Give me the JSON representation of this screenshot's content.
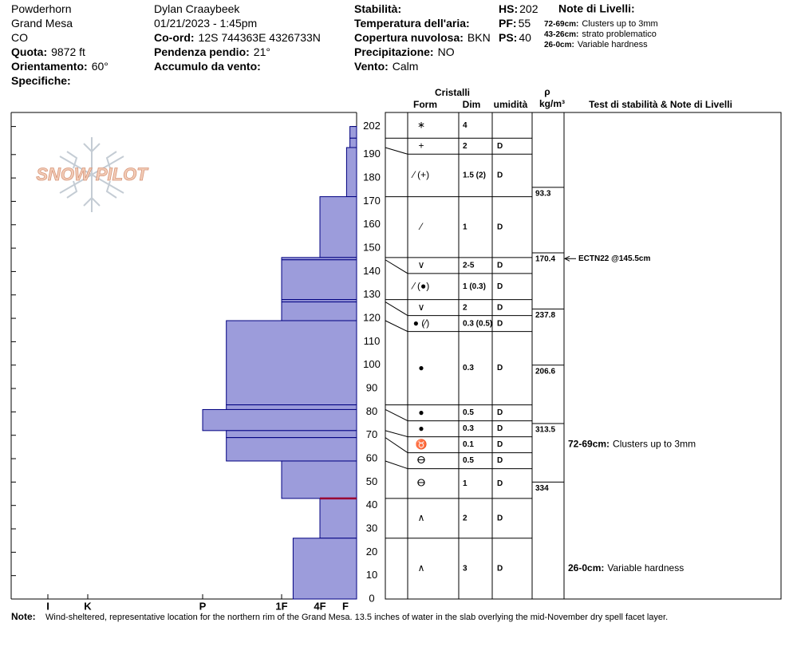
{
  "header": {
    "columns": [
      [
        {
          "value": "Powderhorn"
        },
        {
          "value": "Grand Mesa"
        },
        {
          "value": "CO"
        },
        {
          "label": "Quota:",
          "value": "9872 ft"
        },
        {
          "label": "Orientamento:",
          "value": "60°"
        },
        {
          "label": "Specifiche:"
        }
      ],
      [
        {
          "value": "Dylan Craaybeek"
        },
        {
          "value": "01/21/2023 - 1:45pm"
        },
        {
          "label": "Co-ord:",
          "value": "12S 744363E 4326733N"
        },
        {
          "label": "Pendenza pendio:",
          "value": "21°"
        },
        {
          "label": "Accumulo da vento:"
        }
      ],
      [
        {
          "label": "Stabilità:"
        },
        {
          "label": "Temperatura dell'aria:"
        },
        {
          "label": "Copertura nuvolosa:",
          "value": "BKN"
        },
        {
          "label": "Precipitazione:",
          "value": "NO"
        },
        {
          "label": "Vento:",
          "value": "Calm"
        }
      ],
      [
        {
          "label": "HS:",
          "value": 202
        },
        {
          "label": "PF:",
          "value": 55
        },
        {
          "label": "PS:",
          "value": 40
        }
      ]
    ],
    "notes_title": "Note di Livelli:",
    "notes": [
      {
        "range": "72-69cm:",
        "text": "Clusters up to 3mm"
      },
      {
        "range": "43-26cm:",
        "text": "strato problematico"
      },
      {
        "range": "26-0cm:",
        "text": "Variable hardness"
      }
    ]
  },
  "chart_data": {
    "type": "snow-profile",
    "logo": "SNOW PILOT",
    "ylim": [
      0,
      208
    ],
    "yticks": [
      0,
      10,
      20,
      30,
      40,
      50,
      60,
      70,
      80,
      90,
      100,
      110,
      120,
      130,
      140,
      150,
      160,
      170,
      180,
      190,
      202
    ],
    "xlim": [
      0,
      7
    ],
    "xticks": [
      {
        "value": 6,
        "label": "I"
      },
      {
        "value": 5,
        "label": "K"
      },
      {
        "value": 4,
        "label": "P"
      },
      {
        "value": 3,
        "label": "1F"
      },
      {
        "value": 2,
        "label": "4F"
      },
      {
        "value": 1,
        "label": "F"
      }
    ],
    "bar_color": "#9c9cdb",
    "edge_color": "#000080",
    "critical_color": "#990033",
    "columns": {
      "crystals": "Cristalli",
      "form": "Form",
      "size": "Dim",
      "moisture": "umidità",
      "density_symbol": "ρ",
      "density_unit": "kg/m³",
      "tests": "Test di stabilità & Note di Livelli"
    },
    "layers": [
      {
        "top": 202,
        "bottom": 197,
        "hardness": 0.6,
        "form": "∗",
        "size": 4
      },
      {
        "top": 197,
        "bottom": 193,
        "hardness": 0.6,
        "form": "+",
        "size": 2,
        "moisture": "D"
      },
      {
        "top": 193,
        "bottom": 172,
        "hardness": 0.9,
        "form": "⁄ (+)",
        "size": "1.5 (2)",
        "moisture": "D"
      },
      {
        "top": 172,
        "bottom": 146,
        "hardness": 2,
        "form": "⁄",
        "size": 1,
        "moisture": "D"
      },
      {
        "top": 146,
        "bottom": 145,
        "hardness": 3,
        "form": "∨",
        "size": "2-5",
        "moisture": "D"
      },
      {
        "top": 145,
        "bottom": 128,
        "hardness": 3,
        "form": "⁄ (●)",
        "size": "1 (0.3)",
        "moisture": "D"
      },
      {
        "top": 128,
        "bottom": 127,
        "hardness": 3,
        "form": "∨",
        "size": 2,
        "moisture": "D"
      },
      {
        "top": 127,
        "bottom": 119,
        "hardness": 3,
        "form": "● (⁄)",
        "size": "0.3 (0.5)",
        "moisture": "D"
      },
      {
        "top": 119,
        "bottom": 83,
        "hardness": 3.7,
        "form": "●",
        "size": 0.3,
        "moisture": "D"
      },
      {
        "top": 83,
        "bottom": 81,
        "hardness": 3.7,
        "form": "●",
        "size": 0.5,
        "moisture": "D"
      },
      {
        "top": 81,
        "bottom": 72,
        "hardness": 4,
        "form": "●",
        "size": 0.3,
        "moisture": "D"
      },
      {
        "top": 72,
        "bottom": 69,
        "hardness": 3.7,
        "form": "♉",
        "size": 0.1,
        "moisture": "D",
        "note": {
          "range": "72-69cm:",
          "text": "Clusters up to 3mm"
        }
      },
      {
        "top": 69,
        "bottom": 59,
        "hardness": 3.7,
        "form": "ⴱ",
        "size": 0.5,
        "moisture": "D"
      },
      {
        "top": 59,
        "bottom": 43,
        "hardness": 3,
        "form": "ⴱ",
        "size": 1,
        "moisture": "D"
      },
      {
        "top": 43,
        "bottom": 26,
        "hardness": 2,
        "form": "∧",
        "size": 2,
        "moisture": "D",
        "critical": true
      },
      {
        "top": 26,
        "bottom": 0,
        "hardness": 2.7,
        "form": "∧",
        "size": 3,
        "moisture": "D",
        "note": {
          "range": "26-0cm:",
          "text": "Variable hardness"
        }
      }
    ],
    "density": [
      {
        "height": 176,
        "value": 93.3
      },
      {
        "height": 148,
        "value": 170.4
      },
      {
        "height": 124,
        "value": 237.8
      },
      {
        "height": 100,
        "value": 206.6
      },
      {
        "height": 75,
        "value": 313.5
      },
      {
        "height": 50,
        "value": 334
      }
    ],
    "tests": [
      {
        "height": 145.5,
        "label": "ECTN22 @145.5cm"
      }
    ]
  },
  "footer": {
    "label": "Note:",
    "text": "Wind-sheltered, representative location for the northern rim of the Grand Mesa. 13.5 inches of water in the slab overlying the mid-November dry spell facet layer."
  }
}
